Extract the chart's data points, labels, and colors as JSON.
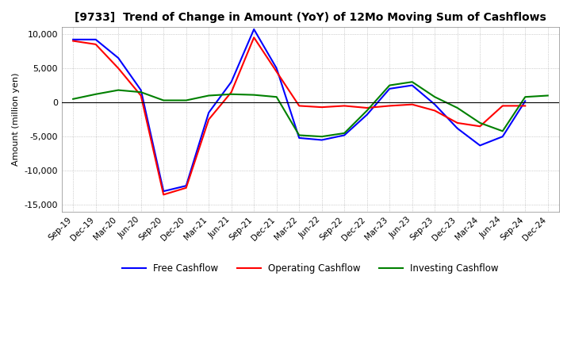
{
  "title": "[9733]  Trend of Change in Amount (YoY) of 12Mo Moving Sum of Cashflows",
  "ylabel": "Amount (million yen)",
  "ylim": [
    -16000,
    11000
  ],
  "yticks": [
    -15000,
    -10000,
    -5000,
    0,
    5000,
    10000
  ],
  "x_labels": [
    "Sep-19",
    "Dec-19",
    "Mar-20",
    "Jun-20",
    "Sep-20",
    "Dec-20",
    "Mar-21",
    "Jun-21",
    "Sep-21",
    "Dec-21",
    "Mar-22",
    "Jun-22",
    "Sep-22",
    "Dec-22",
    "Mar-23",
    "Jun-23",
    "Sep-23",
    "Dec-23",
    "Mar-24",
    "Jun-24",
    "Sep-24",
    "Dec-24"
  ],
  "operating": [
    9000,
    8500,
    5000,
    1000,
    -13500,
    -12500,
    -2500,
    1500,
    9500,
    4500,
    -500,
    -700,
    -500,
    -800,
    -500,
    -300,
    -1200,
    -3000,
    -3500,
    -500,
    -500,
    null
  ],
  "investing": [
    500,
    1200,
    1800,
    1500,
    300,
    300,
    1000,
    1200,
    1100,
    800,
    -4800,
    -5000,
    -4500,
    -1200,
    2500,
    3000,
    800,
    -800,
    -3000,
    -4200,
    800,
    1000
  ],
  "free": [
    9200,
    9200,
    6500,
    1800,
    -13000,
    -12200,
    -1500,
    3000,
    10700,
    5000,
    -5200,
    -5500,
    -4800,
    -1800,
    2000,
    2500,
    -300,
    -3800,
    -6300,
    -5000,
    200,
    null
  ],
  "colors": {
    "operating": "#FF0000",
    "investing": "#008000",
    "free": "#0000FF"
  },
  "legend_labels": [
    "Operating Cashflow",
    "Investing Cashflow",
    "Free Cashflow"
  ],
  "background_color": "#FFFFFF",
  "grid_color": "#AAAAAA"
}
